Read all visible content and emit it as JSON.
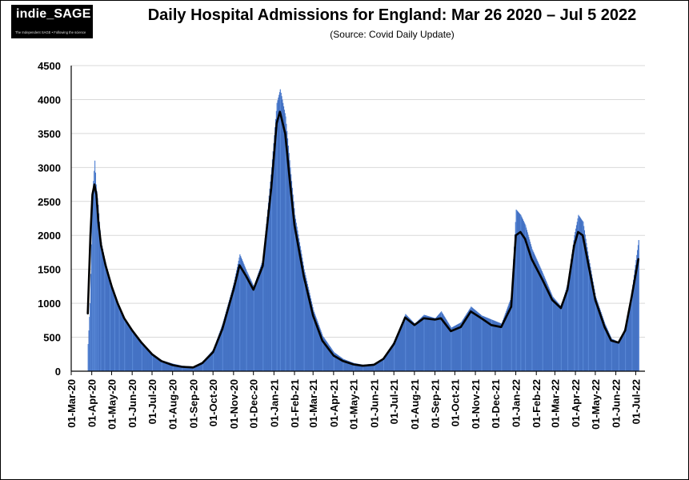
{
  "logo": {
    "text": "indie_SAGE",
    "tagline": "The Independent SAGE • Following the science"
  },
  "chart_data": {
    "type": "bar",
    "title": "Daily Hospital Admissions for England: Mar 26 2020 – Jul 5 2022",
    "subtitle": "(Source: Covid Daily Update)",
    "xlabel": "",
    "ylabel": "",
    "ylim": [
      0,
      4500
    ],
    "xlim": [
      "2020-03-01",
      "2022-07-15"
    ],
    "y_ticks": [
      0,
      500,
      1000,
      1500,
      2000,
      2500,
      3000,
      3500,
      4000,
      4500
    ],
    "x_tick_labels": [
      "01-Mar-20",
      "01-Apr-20",
      "01-May-20",
      "01-Jun-20",
      "01-Jul-20",
      "01-Aug-20",
      "01-Sep-20",
      "01-Oct-20",
      "01-Nov-20",
      "01-Dec-20",
      "01-Jan-21",
      "01-Feb-21",
      "01-Mar-21",
      "01-Apr-21",
      "01-May-21",
      "01-Jun-21",
      "01-Jul-21",
      "01-Aug-21",
      "01-Sep-21",
      "01-Oct-21",
      "01-Nov-21",
      "01-Dec-21",
      "01-Jan-22",
      "01-Feb-22",
      "01-Mar-22",
      "01-Apr-22",
      "01-May-22",
      "01-Jun-22",
      "01-Jul-22"
    ],
    "grid": true,
    "legend": "none",
    "bar_color": "#4472c4",
    "line_color": "#000000",
    "series": [
      {
        "kind": "bar",
        "points": [
          {
            "x": "2020-03-26",
            "y": 400
          },
          {
            "x": "2020-03-29",
            "y": 1000
          },
          {
            "x": "2020-04-01",
            "y": 2300
          },
          {
            "x": "2020-04-03",
            "y": 2800
          },
          {
            "x": "2020-04-05",
            "y": 3100
          },
          {
            "x": "2020-04-07",
            "y": 2750
          },
          {
            "x": "2020-04-10",
            "y": 2450
          },
          {
            "x": "2020-04-14",
            "y": 1950
          },
          {
            "x": "2020-04-20",
            "y": 1650
          },
          {
            "x": "2020-04-28",
            "y": 1350
          },
          {
            "x": "2020-05-05",
            "y": 1150
          },
          {
            "x": "2020-05-12",
            "y": 950
          },
          {
            "x": "2020-05-20",
            "y": 780
          },
          {
            "x": "2020-06-01",
            "y": 600
          },
          {
            "x": "2020-06-15",
            "y": 420
          },
          {
            "x": "2020-07-01",
            "y": 260
          },
          {
            "x": "2020-07-15",
            "y": 160
          },
          {
            "x": "2020-08-01",
            "y": 110
          },
          {
            "x": "2020-08-15",
            "y": 80
          },
          {
            "x": "2020-09-01",
            "y": 70
          },
          {
            "x": "2020-09-15",
            "y": 140
          },
          {
            "x": "2020-10-01",
            "y": 320
          },
          {
            "x": "2020-10-15",
            "y": 700
          },
          {
            "x": "2020-11-01",
            "y": 1300
          },
          {
            "x": "2020-11-10",
            "y": 1720
          },
          {
            "x": "2020-11-20",
            "y": 1480
          },
          {
            "x": "2020-12-01",
            "y": 1250
          },
          {
            "x": "2020-12-15",
            "y": 1650
          },
          {
            "x": "2020-12-28",
            "y": 3000
          },
          {
            "x": "2021-01-05",
            "y": 3950
          },
          {
            "x": "2021-01-10",
            "y": 4150
          },
          {
            "x": "2021-01-18",
            "y": 3750
          },
          {
            "x": "2021-01-25",
            "y": 3000
          },
          {
            "x": "2021-02-01",
            "y": 2300
          },
          {
            "x": "2021-02-15",
            "y": 1500
          },
          {
            "x": "2021-03-01",
            "y": 900
          },
          {
            "x": "2021-03-15",
            "y": 520
          },
          {
            "x": "2021-04-01",
            "y": 280
          },
          {
            "x": "2021-04-15",
            "y": 180
          },
          {
            "x": "2021-05-01",
            "y": 120
          },
          {
            "x": "2021-05-15",
            "y": 95
          },
          {
            "x": "2021-06-01",
            "y": 110
          },
          {
            "x": "2021-06-15",
            "y": 200
          },
          {
            "x": "2021-07-01",
            "y": 440
          },
          {
            "x": "2021-07-18",
            "y": 840
          },
          {
            "x": "2021-08-01",
            "y": 700
          },
          {
            "x": "2021-08-15",
            "y": 830
          },
          {
            "x": "2021-09-01",
            "y": 780
          },
          {
            "x": "2021-09-10",
            "y": 880
          },
          {
            "x": "2021-09-25",
            "y": 640
          },
          {
            "x": "2021-10-10",
            "y": 720
          },
          {
            "x": "2021-10-25",
            "y": 950
          },
          {
            "x": "2021-11-10",
            "y": 820
          },
          {
            "x": "2021-11-25",
            "y": 760
          },
          {
            "x": "2021-12-10",
            "y": 700
          },
          {
            "x": "2021-12-25",
            "y": 1100
          },
          {
            "x": "2022-01-01",
            "y": 2380
          },
          {
            "x": "2022-01-08",
            "y": 2300
          },
          {
            "x": "2022-01-15",
            "y": 2150
          },
          {
            "x": "2022-01-25",
            "y": 1800
          },
          {
            "x": "2022-02-10",
            "y": 1450
          },
          {
            "x": "2022-02-25",
            "y": 1100
          },
          {
            "x": "2022-03-10",
            "y": 950
          },
          {
            "x": "2022-03-20",
            "y": 1300
          },
          {
            "x": "2022-03-30",
            "y": 2000
          },
          {
            "x": "2022-04-05",
            "y": 2300
          },
          {
            "x": "2022-04-12",
            "y": 2200
          },
          {
            "x": "2022-04-20",
            "y": 1700
          },
          {
            "x": "2022-05-01",
            "y": 1100
          },
          {
            "x": "2022-05-15",
            "y": 700
          },
          {
            "x": "2022-05-25",
            "y": 480
          },
          {
            "x": "2022-06-05",
            "y": 430
          },
          {
            "x": "2022-06-15",
            "y": 650
          },
          {
            "x": "2022-06-25",
            "y": 1200
          },
          {
            "x": "2022-07-05",
            "y": 1930
          }
        ]
      },
      {
        "kind": "line",
        "points": [
          {
            "x": "2020-03-26",
            "y": 850
          },
          {
            "x": "2020-03-30",
            "y": 2000
          },
          {
            "x": "2020-04-02",
            "y": 2600
          },
          {
            "x": "2020-04-05",
            "y": 2750
          },
          {
            "x": "2020-04-08",
            "y": 2600
          },
          {
            "x": "2020-04-11",
            "y": 2200
          },
          {
            "x": "2020-04-15",
            "y": 1850
          },
          {
            "x": "2020-04-22",
            "y": 1550
          },
          {
            "x": "2020-05-01",
            "y": 1250
          },
          {
            "x": "2020-05-10",
            "y": 1000
          },
          {
            "x": "2020-05-20",
            "y": 780
          },
          {
            "x": "2020-06-01",
            "y": 600
          },
          {
            "x": "2020-06-15",
            "y": 420
          },
          {
            "x": "2020-07-01",
            "y": 250
          },
          {
            "x": "2020-07-15",
            "y": 150
          },
          {
            "x": "2020-08-01",
            "y": 90
          },
          {
            "x": "2020-08-15",
            "y": 65
          },
          {
            "x": "2020-09-01",
            "y": 55
          },
          {
            "x": "2020-09-15",
            "y": 120
          },
          {
            "x": "2020-10-01",
            "y": 280
          },
          {
            "x": "2020-10-15",
            "y": 620
          },
          {
            "x": "2020-11-01",
            "y": 1200
          },
          {
            "x": "2020-11-10",
            "y": 1560
          },
          {
            "x": "2020-11-20",
            "y": 1400
          },
          {
            "x": "2020-12-01",
            "y": 1200
          },
          {
            "x": "2020-12-15",
            "y": 1550
          },
          {
            "x": "2020-12-28",
            "y": 2700
          },
          {
            "x": "2021-01-05",
            "y": 3650
          },
          {
            "x": "2021-01-10",
            "y": 3820
          },
          {
            "x": "2021-01-18",
            "y": 3500
          },
          {
            "x": "2021-01-25",
            "y": 2800
          },
          {
            "x": "2021-02-01",
            "y": 2150
          },
          {
            "x": "2021-02-15",
            "y": 1400
          },
          {
            "x": "2021-03-01",
            "y": 820
          },
          {
            "x": "2021-03-15",
            "y": 450
          },
          {
            "x": "2021-04-01",
            "y": 230
          },
          {
            "x": "2021-04-15",
            "y": 150
          },
          {
            "x": "2021-05-01",
            "y": 100
          },
          {
            "x": "2021-05-15",
            "y": 80
          },
          {
            "x": "2021-06-01",
            "y": 95
          },
          {
            "x": "2021-06-15",
            "y": 180
          },
          {
            "x": "2021-07-01",
            "y": 400
          },
          {
            "x": "2021-07-18",
            "y": 790
          },
          {
            "x": "2021-08-01",
            "y": 680
          },
          {
            "x": "2021-08-15",
            "y": 780
          },
          {
            "x": "2021-09-01",
            "y": 760
          },
          {
            "x": "2021-09-10",
            "y": 780
          },
          {
            "x": "2021-09-25",
            "y": 590
          },
          {
            "x": "2021-10-10",
            "y": 650
          },
          {
            "x": "2021-10-25",
            "y": 880
          },
          {
            "x": "2021-11-10",
            "y": 780
          },
          {
            "x": "2021-11-25",
            "y": 680
          },
          {
            "x": "2021-12-10",
            "y": 650
          },
          {
            "x": "2021-12-25",
            "y": 950
          },
          {
            "x": "2022-01-01",
            "y": 2000
          },
          {
            "x": "2022-01-08",
            "y": 2050
          },
          {
            "x": "2022-01-15",
            "y": 1950
          },
          {
            "x": "2022-01-25",
            "y": 1650
          },
          {
            "x": "2022-02-10",
            "y": 1350
          },
          {
            "x": "2022-02-25",
            "y": 1050
          },
          {
            "x": "2022-03-10",
            "y": 930
          },
          {
            "x": "2022-03-20",
            "y": 1200
          },
          {
            "x": "2022-03-30",
            "y": 1850
          },
          {
            "x": "2022-04-05",
            "y": 2050
          },
          {
            "x": "2022-04-12",
            "y": 2000
          },
          {
            "x": "2022-04-20",
            "y": 1600
          },
          {
            "x": "2022-05-01",
            "y": 1050
          },
          {
            "x": "2022-05-15",
            "y": 650
          },
          {
            "x": "2022-05-25",
            "y": 450
          },
          {
            "x": "2022-06-05",
            "y": 420
          },
          {
            "x": "2022-06-15",
            "y": 600
          },
          {
            "x": "2022-06-25",
            "y": 1100
          },
          {
            "x": "2022-07-05",
            "y": 1650
          }
        ]
      }
    ]
  }
}
